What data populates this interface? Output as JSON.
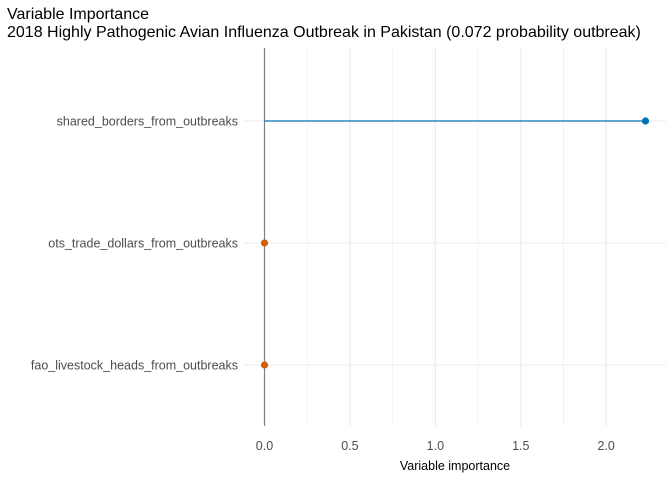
{
  "chart_data": {
    "type": "lollipop",
    "title": "Variable Importance",
    "subtitle": "2018 Highly Pathogenic Avian Influenza Outbreak in Pakistan (0.072 probability outbreak)",
    "xlabel": "Variable importance",
    "ylabel": "",
    "xlim": [
      -0.12,
      2.35
    ],
    "x_ticks": [
      0.0,
      0.5,
      1.0,
      1.5,
      2.0
    ],
    "x_tick_labels": [
      "0.0",
      "0.5",
      "1.0",
      "1.5",
      "2.0"
    ],
    "grid": true,
    "legend": "none",
    "categories": [
      "shared_borders_from_outbreaks",
      "ots_trade_dollars_from_outbreaks",
      "fao_livestock_heads_from_outbreaks"
    ],
    "values": [
      2.23,
      0.0,
      0.0
    ],
    "point_colors": [
      "#0072B2",
      "#D55E00",
      "#D55E00"
    ],
    "segment_color": "#0072B2",
    "zero_line_color": "#808080"
  }
}
